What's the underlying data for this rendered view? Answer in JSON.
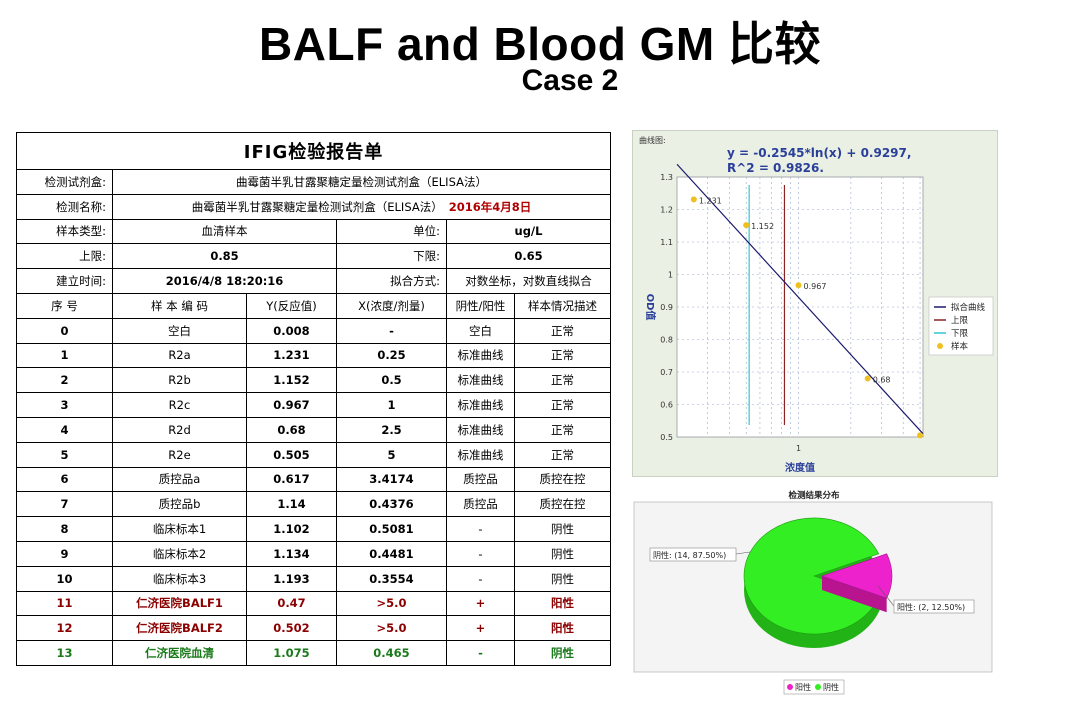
{
  "title": "BALF and Blood  GM 比较",
  "subtitle": "Case 2",
  "report": {
    "heading": "IFIG检验报告单",
    "kit_label": "检测试剂盒:",
    "kit_value": "曲霉菌半乳甘露聚糖定量检测试剂盒（ELISA法）",
    "name_label": "检测名称:",
    "name_value": "曲霉菌半乳甘露聚糖定量检测试剂盒（ELISA法）",
    "name_date": "2016年4月8日",
    "sample_type_label": "样本类型:",
    "sample_type_value": "血清样本",
    "unit_label": "单位:",
    "unit_value": "ug/L",
    "upper_label": "上限:",
    "upper_value": "0.85",
    "lower_label": "下限:",
    "lower_value": "0.65",
    "created_label": "建立时间:",
    "created_value": "2016/4/8 18:20:16",
    "fit_label": "拟合方式:",
    "fit_value": "对数坐标，对数直线拟合",
    "columns": [
      "序 号",
      "样 本 编 码",
      "Y(反应值)",
      "X(浓度/剂量)",
      "阴性/阳性",
      "样本情况描述"
    ],
    "rows": [
      [
        "0",
        "空白",
        "0.008",
        "-",
        "空白",
        "正常"
      ],
      [
        "1",
        "R2a",
        "1.231",
        "0.25",
        "标准曲线",
        "正常"
      ],
      [
        "2",
        "R2b",
        "1.152",
        "0.5",
        "标准曲线",
        "正常"
      ],
      [
        "3",
        "R2c",
        "0.967",
        "1",
        "标准曲线",
        "正常"
      ],
      [
        "4",
        "R2d",
        "0.68",
        "2.5",
        "标准曲线",
        "正常"
      ],
      [
        "5",
        "R2e",
        "0.505",
        "5",
        "标准曲线",
        "正常"
      ],
      [
        "6",
        "质控品a",
        "0.617",
        "3.4174",
        "质控品",
        "质控在控"
      ],
      [
        "7",
        "质控品b",
        "1.14",
        "0.4376",
        "质控品",
        "质控在控"
      ],
      [
        "8",
        "临床标本1",
        "1.102",
        "0.5081",
        "-",
        "阴性"
      ],
      [
        "9",
        "临床标本2",
        "1.134",
        "0.4481",
        "-",
        "阴性"
      ],
      [
        "10",
        "临床标本3",
        "1.193",
        "0.3554",
        "-",
        "阴性"
      ],
      [
        "11",
        "仁济医院BALF1",
        "0.47",
        ">5.0",
        "+",
        "阳性"
      ],
      [
        "12",
        "仁济医院BALF2",
        "0.502",
        ">5.0",
        "+",
        "阳性"
      ],
      [
        "13",
        "仁济医院血清",
        "1.075",
        "0.465",
        "-",
        "阴性"
      ]
    ]
  },
  "chart_data": [
    {
      "type": "scatter",
      "panel_title": "曲线图:",
      "equation_line1": "y = -0.2545*ln(x) + 0.9297,",
      "equation_line2": "R^2 = 0.9826.",
      "xlabel": "浓度值",
      "ylabel": "OD值",
      "x_scale": "log",
      "xlim": [
        0.2,
        5.2
      ],
      "ylim": [
        0.5,
        1.3
      ],
      "y_ticks": [
        0.5,
        0.6,
        0.7,
        0.8,
        0.9,
        1,
        1.1,
        1.2,
        1.3
      ],
      "x_tick_label": "1",
      "points": [
        {
          "x": 0.25,
          "y": 1.231,
          "label": "1.231"
        },
        {
          "x": 0.5,
          "y": 1.152,
          "label": "1.152"
        },
        {
          "x": 1,
          "y": 0.967,
          "label": "0.967"
        },
        {
          "x": 2.5,
          "y": 0.68,
          "label": "0.68"
        },
        {
          "x": 5,
          "y": 0.505,
          "label": ""
        }
      ],
      "fit": {
        "a": -0.2545,
        "b": 0.9297
      },
      "upper_x": 0.83,
      "lower_x": 0.52,
      "legend": [
        "拟合曲线",
        "上限",
        "下限",
        "样本"
      ],
      "colors": {
        "fit": "#1a1a6e",
        "upper": "#8b2222",
        "lower": "#2ec7d0",
        "sample": "#f0c020"
      },
      "legend_position": "right"
    },
    {
      "type": "pie",
      "title": "检测结果分布",
      "slices": [
        {
          "name": "阴性",
          "count": 14,
          "percent": 87.5,
          "label": "阴性: (14, 87.50%)",
          "color": "#33ee22"
        },
        {
          "name": "阳性",
          "count": 2,
          "percent": 12.5,
          "label": "阳性: (2, 12.50%)",
          "color": "#ee22cc"
        }
      ],
      "legend": [
        "阳性",
        "阴性"
      ],
      "legend_position": "bottom"
    }
  ]
}
